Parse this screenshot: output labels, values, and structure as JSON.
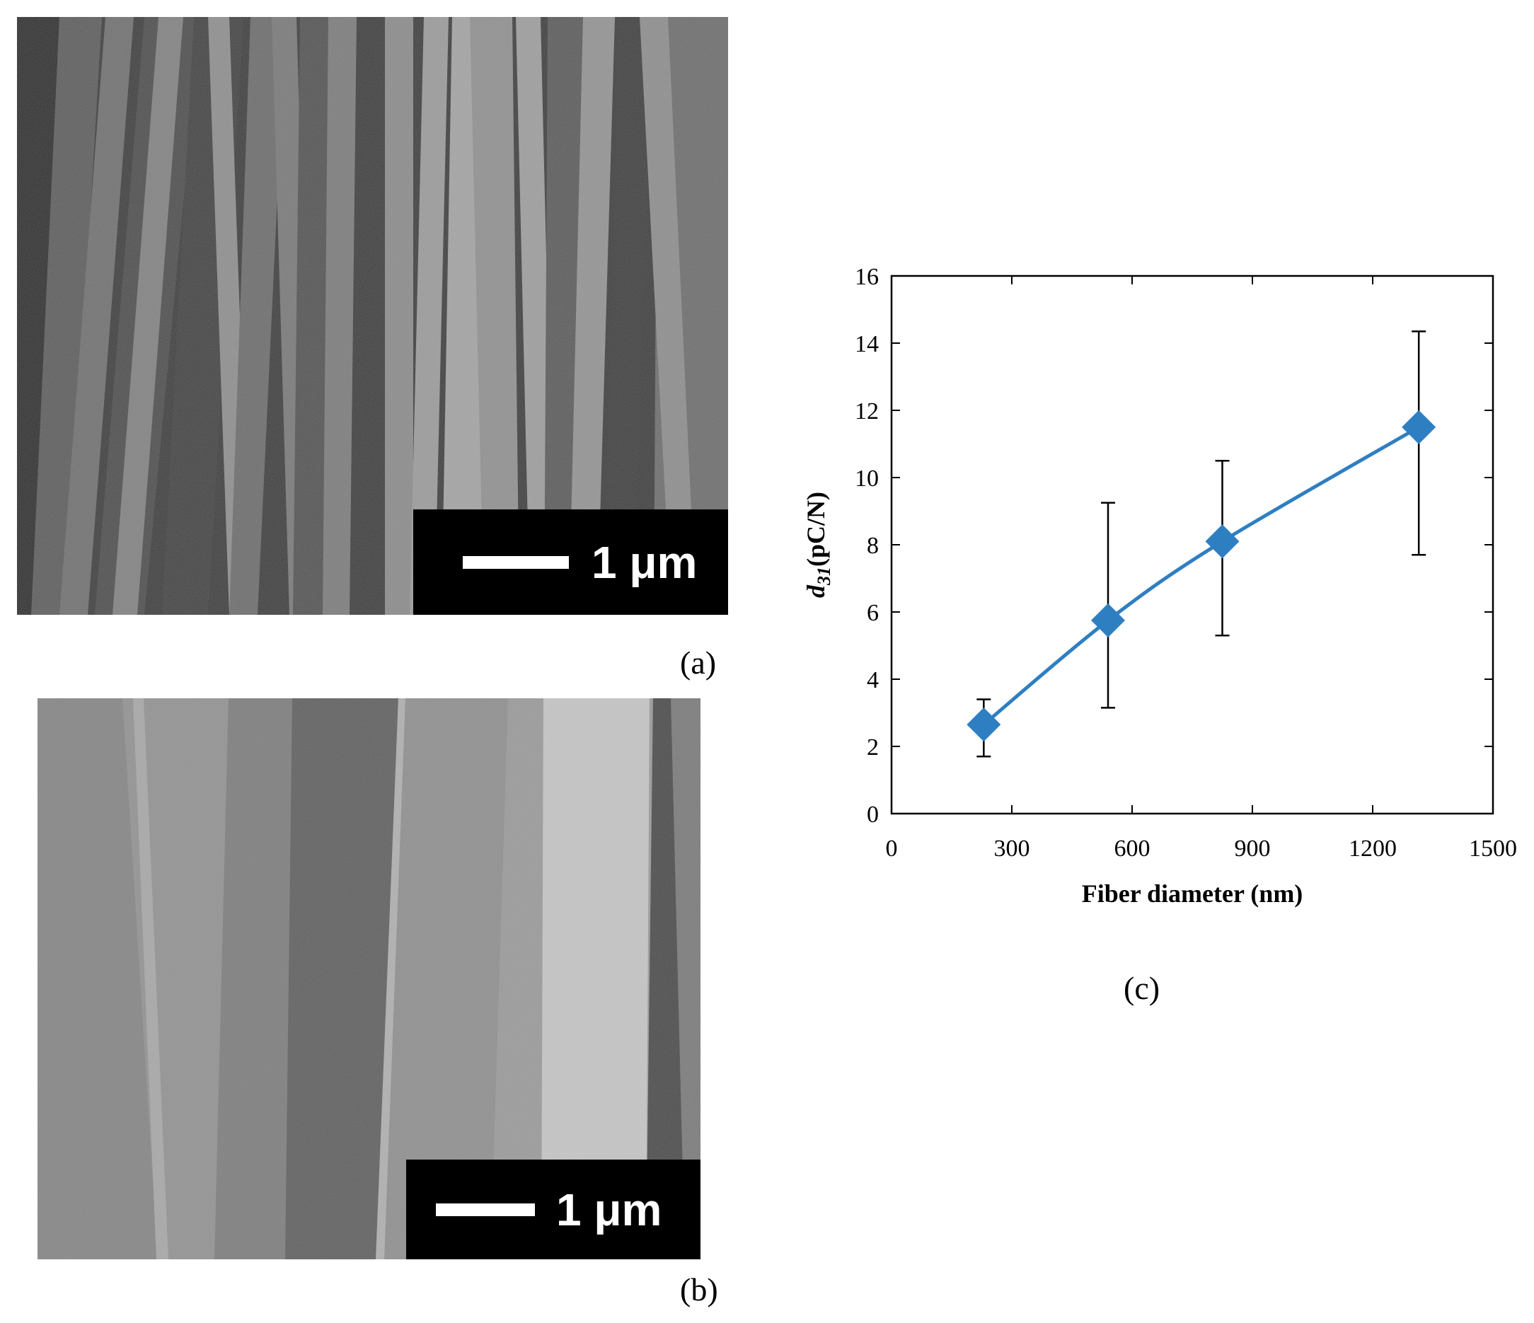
{
  "panels": {
    "a": {
      "label": "(a)",
      "scale_bar": "1 μm"
    },
    "b": {
      "label": "(b)",
      "scale_bar": "1 μm"
    },
    "c": {
      "label": "(c)"
    }
  },
  "chart_data": {
    "type": "scatter",
    "title": "",
    "xlabel": "Fiber diameter (nm)",
    "ylabel_main": "d",
    "ylabel_sub": "31",
    "ylabel_unit": "(pC/N)",
    "xlim": [
      0,
      1500
    ],
    "ylim": [
      0,
      16
    ],
    "xticks": [
      0,
      300,
      600,
      900,
      1200,
      1500
    ],
    "yticks": [
      0,
      2,
      4,
      6,
      8,
      10,
      12,
      14,
      16
    ],
    "grid": false,
    "series": [
      {
        "color": "#2e7fc1",
        "marker": "diamond",
        "line": "smoothed",
        "points": [
          {
            "x": 230,
            "y": 2.65,
            "err_low": 1.7,
            "err_high": 3.4
          },
          {
            "x": 540,
            "y": 5.75,
            "err_low": 3.15,
            "err_high": 9.25
          },
          {
            "x": 825,
            "y": 8.1,
            "err_low": 5.3,
            "err_high": 10.5
          },
          {
            "x": 1315,
            "y": 11.5,
            "err_low": 7.7,
            "err_high": 14.35
          }
        ]
      }
    ]
  }
}
